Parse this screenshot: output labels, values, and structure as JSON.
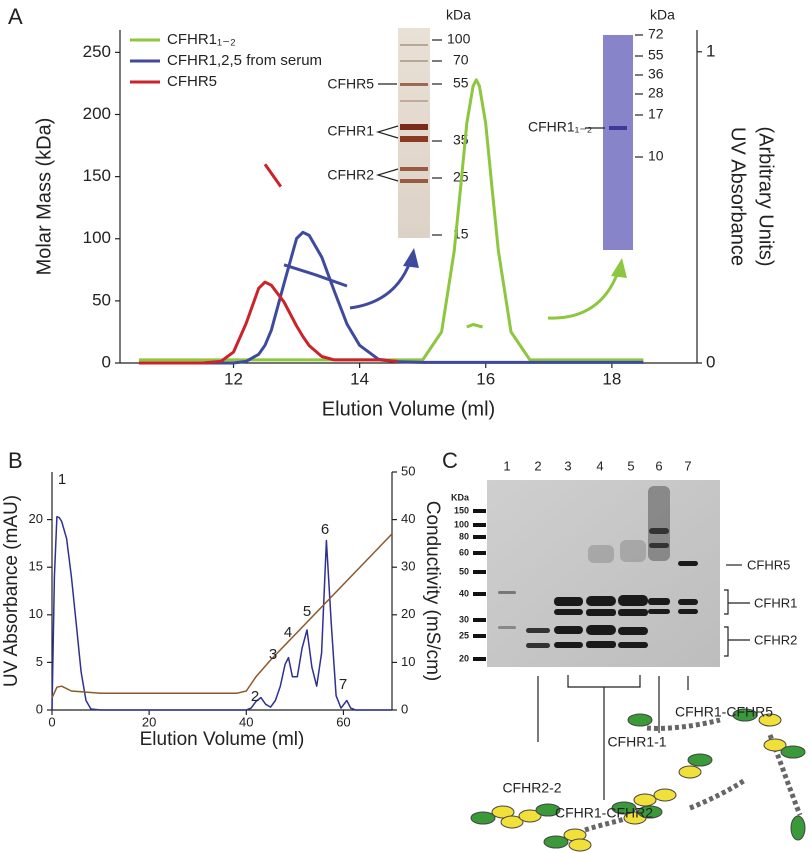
{
  "panel_labels": [
    "A",
    "B",
    "C"
  ],
  "chart_data": [
    {
      "type": "line",
      "xlabel": "Elution Volume (ml)",
      "ylabel": "Molar Mass (kDa)",
      "y2label": [
        "UV Absorbance",
        "(Arbitrary Units)"
      ],
      "xlim": [
        10.2,
        19.35
      ],
      "xticks": [
        12,
        14,
        16,
        18
      ],
      "ylim": [
        0,
        268
      ],
      "yticks": [
        0,
        50,
        100,
        150,
        200,
        250
      ],
      "y2lim": [
        0,
        1.07
      ],
      "y2ticks": [
        0,
        1
      ],
      "legend": "upper left",
      "series": [
        {
          "name": "CFHR1₁₋₂",
          "color": "#8dc63f",
          "axis": "y2",
          "x": [
            10.5,
            11,
            11.5,
            11.8,
            12.0,
            12.2,
            12.4,
            12.5,
            12.6,
            12.8,
            13.0,
            13.1,
            13.2,
            13.4,
            13.6,
            13.8,
            14.0,
            14.3,
            14.6,
            15.0,
            15.3,
            15.5,
            15.6,
            15.7,
            15.8,
            15.85,
            15.9,
            16.0,
            16.1,
            16.2,
            16.4,
            16.7,
            17.0,
            17.5,
            18.0,
            18.5
          ],
          "values": [
            0.01,
            0.01,
            0.01,
            0.01,
            0.01,
            0.01,
            0.01,
            0.01,
            0.01,
            0.01,
            0.01,
            0.01,
            0.01,
            0.01,
            0.01,
            0.01,
            0.01,
            0.01,
            0.01,
            0.01,
            0.1,
            0.36,
            0.56,
            0.77,
            0.89,
            0.91,
            0.89,
            0.77,
            0.56,
            0.36,
            0.1,
            0.01,
            0.01,
            0.01,
            0.01,
            0.01
          ]
        },
        {
          "name": "CFHR1,2,5 from serum",
          "color": "#3f4a9e",
          "axis": "y2",
          "x": [
            10.5,
            11,
            11.5,
            11.8,
            12.0,
            12.2,
            12.4,
            12.5,
            12.6,
            12.8,
            13.0,
            13.1,
            13.2,
            13.4,
            13.6,
            13.8,
            14.0,
            14.3,
            14.6,
            15.0,
            15.3,
            15.5,
            15.6,
            15.7,
            15.8,
            15.85,
            15.9,
            16.0,
            16.1,
            16.2,
            16.4,
            16.7,
            17.0,
            17.5,
            18.0,
            18.5
          ],
          "values": [
            0,
            0,
            0,
            0,
            0,
            0.005,
            0.028,
            0.057,
            0.105,
            0.255,
            0.4,
            0.42,
            0.41,
            0.34,
            0.23,
            0.125,
            0.057,
            0.012,
            0.004,
            0.002,
            0.002,
            0.002,
            0.002,
            0.002,
            0.002,
            0.002,
            0.002,
            0.002,
            0.002,
            0.002,
            0.002,
            0.002,
            0.002,
            0.002,
            0.002,
            0.002
          ]
        },
        {
          "name": "CFHR5",
          "color": "#cc2229",
          "axis": "y2",
          "x": [
            10.5,
            11,
            11.5,
            11.8,
            12.0,
            12.2,
            12.4,
            12.5,
            12.6,
            12.8,
            13.0,
            13.1,
            13.2,
            13.4,
            13.6,
            13.8,
            14.0,
            14.3,
            14.6
          ],
          "values": [
            0,
            0,
            0,
            0.005,
            0.035,
            0.127,
            0.24,
            0.26,
            0.25,
            0.196,
            0.119,
            0.085,
            0.056,
            0.021,
            0.01,
            0.01,
            0.01,
            0.01,
            0.005
          ]
        },
        {
          "color": "#3f4a9e",
          "axis": "y",
          "x": [
            12.8,
            13.3,
            13.8
          ],
          "values": [
            79,
            71,
            62
          ]
        },
        {
          "color": "#cc2229",
          "axis": "y",
          "x": [
            12.5,
            12.75
          ],
          "values": [
            160,
            142
          ]
        },
        {
          "color": "#8dc63f",
          "axis": "y",
          "x": [
            15.7,
            15.8,
            15.95
          ],
          "values": [
            29,
            31,
            29
          ]
        }
      ],
      "insets": [
        {
          "unit": "kDa",
          "markers": [
            100,
            70,
            55,
            35,
            25,
            15
          ],
          "bands": [
            "CFHR5",
            "CFHR1",
            "CFHR2"
          ]
        },
        {
          "unit": "kDa",
          "markers": [
            72,
            55,
            36,
            28,
            17,
            10
          ],
          "bands": [
            "CFHR1₁₋₂"
          ]
        }
      ]
    },
    {
      "type": "line",
      "xlabel": "Elution Volume (ml)",
      "ylabel": "UV Absorbance (mAU)",
      "y2label": [
        "Conductivity (mS/cm)"
      ],
      "xlim": [
        0,
        70
      ],
      "xticks": [
        0,
        20,
        40,
        60
      ],
      "ylim": [
        0,
        25
      ],
      "yticks": [
        0,
        5,
        10,
        15,
        20
      ],
      "y2lim": [
        0,
        50
      ],
      "y2ticks": [
        0,
        10,
        20,
        30,
        40,
        50
      ],
      "peak_labels": [
        "1",
        "2",
        "3",
        "4",
        "5",
        "6",
        "7"
      ],
      "series": [
        {
          "color": "#2e3192",
          "axis": "y",
          "x": [
            0,
            0.5,
            1,
            1.5,
            2,
            3,
            4,
            5,
            6,
            7,
            8,
            10,
            20,
            30,
            38,
            40,
            41,
            42,
            43,
            44,
            45,
            46,
            47,
            48,
            48.7,
            49.5,
            50.5,
            51.5,
            52.5,
            53.5,
            54.5,
            55.5,
            56.5,
            57.5,
            58.5,
            59.5,
            60.7,
            61.5,
            62.5,
            65,
            70
          ],
          "values": [
            0,
            14,
            20.3,
            20.2,
            19.8,
            18,
            14,
            9,
            4,
            1,
            0.1,
            0,
            0,
            0,
            0,
            0,
            0.2,
            0.9,
            1.3,
            0.6,
            0.3,
            1,
            2.5,
            4.8,
            5.5,
            3.5,
            3.5,
            6.5,
            8.4,
            4.5,
            2.5,
            6,
            17.8,
            9,
            1.5,
            0.2,
            1.0,
            0.2,
            0,
            0,
            0
          ]
        },
        {
          "color": "#8b5a2b",
          "axis": "y2",
          "x": [
            0,
            1,
            2,
            4,
            10,
            38,
            40,
            42,
            45,
            70
          ],
          "values": [
            2.5,
            4.8,
            5,
            4,
            3.5,
            3.5,
            4,
            7,
            10.5,
            37
          ]
        }
      ]
    }
  ],
  "blot": {
    "lanes": [
      "1",
      "2",
      "3",
      "4",
      "5",
      "6",
      "7"
    ],
    "unit": "KDa",
    "markers": [
      150,
      100,
      80,
      60,
      50,
      40,
      30,
      25,
      20
    ],
    "bands": [
      "CFHR5",
      "CFHR1",
      "CFHR2"
    ],
    "constructs": [
      "CFHR2-2",
      "CFHR1-1",
      "CFHR1-CFHR2",
      "CFHR1-CFHR5"
    ]
  }
}
